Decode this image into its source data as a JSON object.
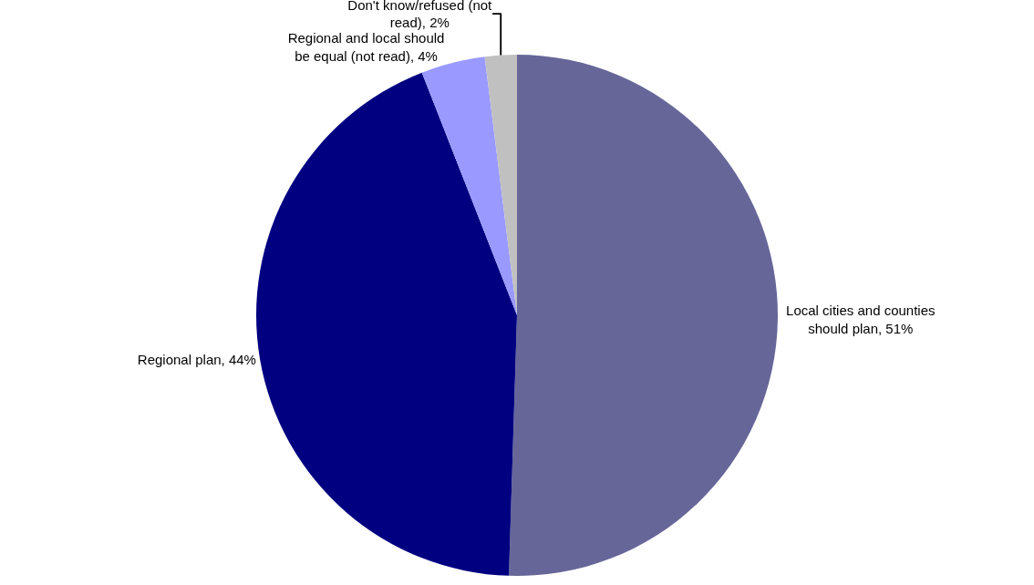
{
  "chart_data": {
    "type": "pie",
    "categories": [
      "Local cities and counties should plan",
      "Regional plan",
      "Regional and local should be equal (not read)",
      "Don't know/refused (not read)"
    ],
    "values": [
      51,
      44,
      4,
      2
    ],
    "value_labels": [
      "51%",
      "44%",
      "4%",
      "2%"
    ],
    "colors": [
      "#666699",
      "#000080",
      "#9999ff",
      "#c0c0c0"
    ],
    "legend": false
  }
}
